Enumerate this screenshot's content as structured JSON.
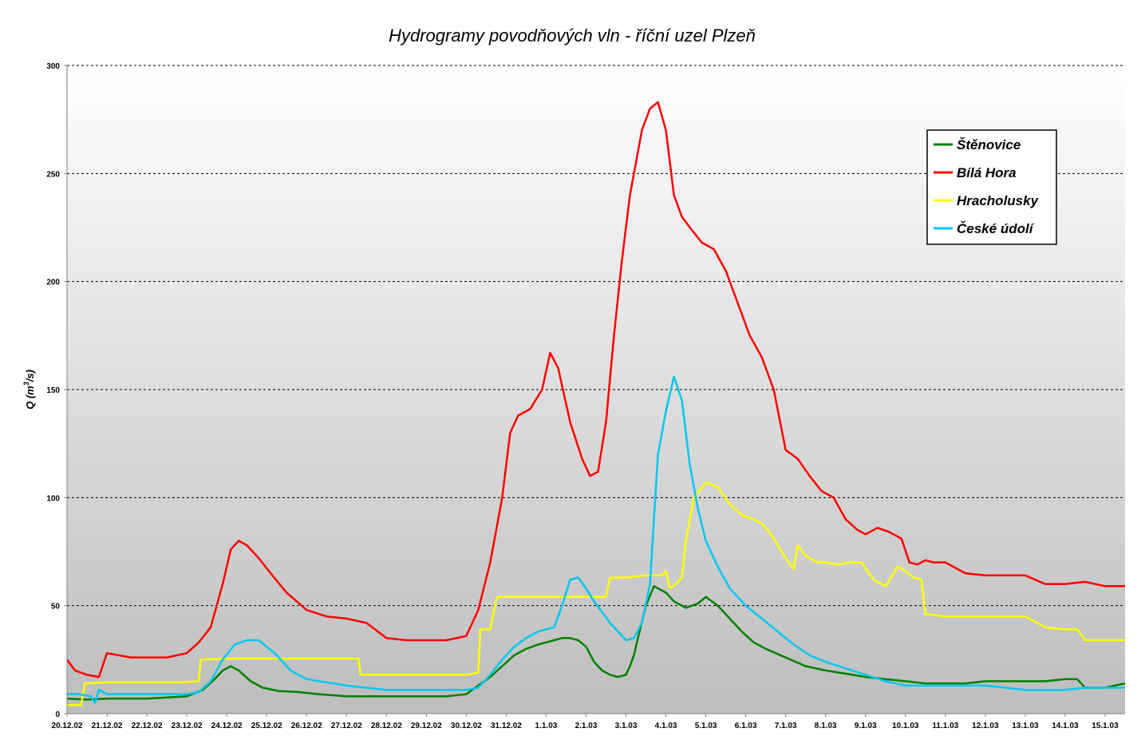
{
  "chart_data": {
    "type": "line",
    "title": "Hydrogramy povodňových vln - říční uzel Plzeň",
    "ylabel": "Q (m",
    "ylabel_sup": "3",
    "ylabel_suffix": "/s)",
    "xlabel": "",
    "ylim": [
      0,
      300
    ],
    "yticks": [
      "0",
      "50",
      "100",
      "150",
      "200",
      "250",
      "300"
    ],
    "yticks_values": [
      0,
      50,
      100,
      150,
      200,
      250,
      300
    ],
    "xlim": [
      0,
      26.5
    ],
    "x_unit": "days after 20.12.02 00:00",
    "xtick_labels": [
      "20.12.02",
      "21.12.02",
      "22.12.02",
      "23.12.02",
      "24.12.02",
      "25.12.02",
      "26.12.02",
      "27.12.02",
      "28.12.02",
      "29.12.02",
      "30.12.02",
      "31.12.02",
      "1.1.03",
      "2.1.03",
      "3.1.03",
      "4.1.03",
      "5.1.03",
      "6.1.03",
      "7.1.03",
      "8.1.03",
      "9.1.03",
      "10.1.03",
      "11.1.03",
      "12.1.03",
      "13.1.03",
      "14.1.03",
      "15.1.03"
    ],
    "grid": "horizontal dashed",
    "legend_position": "top-right",
    "series": [
      {
        "name": "Štěnovice",
        "color": "#008000",
        "x": [
          0,
          0.5,
          1,
          1.5,
          2,
          2.5,
          3,
          3.4,
          3.7,
          3.9,
          4.1,
          4.3,
          4.6,
          4.9,
          5.3,
          5.8,
          6.3,
          7,
          7.5,
          8,
          8.5,
          9,
          9.5,
          10,
          10.3,
          10.6,
          10.9,
          11.2,
          11.5,
          11.8,
          12,
          12.2,
          12.4,
          12.6,
          12.8,
          13,
          13.2,
          13.4,
          13.6,
          13.8,
          14,
          14.1,
          14.2,
          14.3,
          14.5,
          14.7,
          15,
          15.2,
          15.5,
          15.8,
          16,
          16.3,
          16.6,
          16.9,
          17.2,
          17.5,
          18,
          18.5,
          19,
          19.5,
          20,
          20.5,
          21,
          21.5,
          22,
          22.5,
          23,
          23.5,
          24,
          24.5,
          25,
          25.3,
          25.5,
          25.8,
          26,
          26.5
        ],
        "y": [
          7,
          6.5,
          7,
          7,
          7,
          7.5,
          8,
          11,
          16,
          20,
          22,
          20,
          15,
          12,
          10.5,
          10,
          9,
          8,
          8,
          8,
          8,
          8,
          8,
          9,
          13,
          17,
          22,
          27,
          30,
          32,
          33,
          34,
          35,
          35,
          34,
          31,
          24,
          20,
          18,
          17,
          18,
          22,
          27,
          35,
          50,
          59,
          56,
          52,
          49,
          51,
          54,
          50,
          44,
          38,
          33,
          30,
          26,
          22,
          20,
          18.5,
          17,
          16,
          15,
          14,
          14,
          14,
          15,
          15,
          15,
          15,
          16,
          16,
          12,
          12,
          12,
          14
        ]
      },
      {
        "name": "Bílá Hora",
        "color": "#ff0000",
        "x": [
          0,
          0.2,
          0.5,
          0.8,
          1,
          1.3,
          1.6,
          2,
          2.5,
          3,
          3.3,
          3.6,
          3.9,
          4.1,
          4.3,
          4.5,
          4.8,
          5.1,
          5.5,
          6,
          6.5,
          7,
          7.5,
          8,
          8.5,
          9,
          9.5,
          10,
          10.3,
          10.6,
          10.9,
          11.1,
          11.3,
          11.6,
          11.9,
          12.1,
          12.3,
          12.6,
          12.9,
          13.1,
          13.3,
          13.5,
          13.7,
          13.9,
          14.1,
          14.4,
          14.6,
          14.8,
          15,
          15.2,
          15.4,
          15.6,
          15.9,
          16.2,
          16.5,
          16.8,
          17.1,
          17.4,
          17.7,
          18,
          18.3,
          18.6,
          18.9,
          19.2,
          19.5,
          19.8,
          20,
          20.3,
          20.6,
          20.9,
          21.1,
          21.3,
          21.5,
          21.7,
          22,
          22.5,
          23,
          23.5,
          24,
          24.5,
          25,
          25.5,
          26,
          26.5
        ],
        "y": [
          25,
          20,
          18,
          17,
          28,
          27,
          26,
          26,
          26,
          28,
          33,
          40,
          60,
          76,
          80,
          78,
          72,
          65,
          56,
          48,
          45,
          44,
          42,
          35,
          34,
          34,
          34,
          36,
          48,
          70,
          100,
          130,
          138,
          141,
          150,
          167,
          160,
          135,
          118,
          110,
          112,
          135,
          175,
          210,
          240,
          270,
          280,
          283,
          270,
          240,
          230,
          225,
          218,
          215,
          205,
          190,
          175,
          165,
          150,
          122,
          118,
          110,
          103,
          100,
          90,
          85,
          83,
          86,
          84,
          81,
          70,
          69,
          71,
          70,
          70,
          65,
          64,
          64,
          64,
          60,
          60,
          61,
          59,
          59
        ]
      },
      {
        "name": "Hracholusky",
        "color": "#ffff00",
        "x": [
          0,
          0.35,
          0.45,
          1,
          2,
          2.8,
          3.3,
          3.35,
          4,
          5,
          6,
          7,
          7.3,
          7.35,
          8,
          9,
          10,
          10.3,
          10.35,
          10.6,
          10.75,
          10.8,
          11,
          12,
          13,
          13.5,
          13.6,
          14,
          14.5,
          14.9,
          15,
          15.1,
          15.25,
          15.4,
          15.5,
          15.7,
          16,
          16.3,
          16.6,
          16.9,
          17.2,
          17.4,
          17.6,
          17.8,
          18,
          18.2,
          18.3,
          18.5,
          18.8,
          19,
          19.3,
          19.6,
          19.9,
          20.2,
          20.5,
          20.8,
          21,
          21.2,
          21.4,
          21.5,
          21.55,
          22,
          23,
          23.5,
          24,
          24.5,
          25,
          25.2,
          25.3,
          25.5,
          26,
          26.5
        ],
        "y": [
          4,
          4,
          14,
          14.5,
          14.5,
          14.5,
          15,
          25,
          25.5,
          25.5,
          25.5,
          25.5,
          25.5,
          18,
          18,
          18,
          18,
          19,
          39,
          39,
          53,
          54,
          54,
          54,
          54,
          54,
          63,
          63,
          64,
          64,
          66,
          58,
          60,
          63,
          80,
          100,
          107,
          105,
          97,
          92,
          90,
          88,
          84,
          78,
          72,
          67,
          78,
          73,
          70,
          70,
          69,
          70,
          70,
          62,
          59,
          68,
          66,
          63,
          62,
          46,
          46,
          45,
          45,
          45,
          45,
          40,
          39,
          39,
          39,
          34,
          34,
          34
        ]
      },
      {
        "name": "České údolí",
        "color": "#00c8f0",
        "x": [
          0,
          0.3,
          0.6,
          0.7,
          0.8,
          1,
          2,
          3,
          3.3,
          3.6,
          3.9,
          4.2,
          4.5,
          4.8,
          5.2,
          5.6,
          6,
          7,
          8,
          9,
          10,
          10.3,
          10.6,
          10.9,
          11.2,
          11.5,
          11.8,
          12,
          12.2,
          12.4,
          12.6,
          12.8,
          13,
          13.2,
          13.4,
          13.6,
          13.8,
          14,
          14.2,
          14.4,
          14.6,
          14.8,
          15,
          15.2,
          15.4,
          15.6,
          15.8,
          16,
          16.3,
          16.6,
          17,
          17.4,
          17.8,
          18.2,
          18.6,
          19,
          19.5,
          20,
          20.5,
          21,
          21.5,
          22,
          22.5,
          23,
          23.5,
          24,
          24.5,
          25,
          25.5,
          26,
          26.5
        ],
        "y": [
          9,
          9,
          8,
          5,
          11,
          9,
          9,
          9,
          10,
          15,
          25,
          32,
          34,
          34,
          28,
          20,
          16,
          13,
          11,
          11,
          11,
          12,
          18,
          25,
          31,
          35,
          38,
          39,
          40,
          50,
          62,
          63,
          58,
          52,
          47,
          42,
          38,
          34,
          35,
          42,
          60,
          120,
          140,
          156,
          145,
          115,
          95,
          80,
          68,
          58,
          50,
          44,
          38,
          32,
          27,
          24,
          21,
          18,
          15,
          13,
          13,
          13,
          13,
          13,
          12,
          11,
          11,
          11,
          12,
          12,
          12
        ]
      }
    ]
  }
}
